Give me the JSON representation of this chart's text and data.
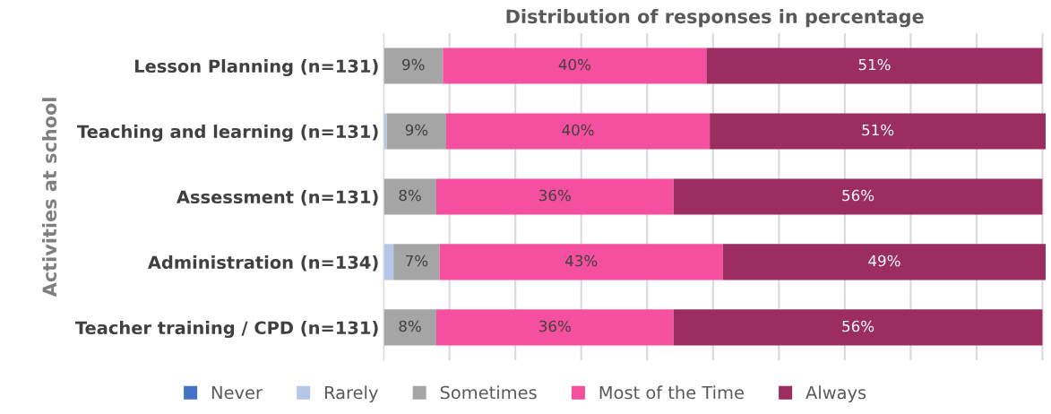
{
  "chart_data": {
    "type": "bar",
    "orientation": "horizontal",
    "stacked": true,
    "title": "Distribution of responses in percentage",
    "ylabel": "Activities at school",
    "categories": [
      "Lesson Planning (n=131)",
      "Teaching and learning (n=131)",
      "Assessment (n=131)",
      "Administration (n=134)",
      "Teacher training / CPD (n=131)"
    ],
    "series": [
      {
        "name": "Never",
        "color": "#4472c4",
        "values": [
          0,
          0,
          0,
          0,
          0
        ]
      },
      {
        "name": "Rarely",
        "color": "#b4c7e7",
        "values": [
          0,
          0.5,
          0,
          1.5,
          0
        ],
        "value_labels": [
          null,
          null,
          null,
          null,
          null
        ]
      },
      {
        "name": "Sometimes",
        "color": "#a5a5a5",
        "values": [
          9,
          9,
          8,
          7,
          8
        ],
        "value_labels": [
          "9%",
          "9%",
          "8%",
          "7%",
          "8%"
        ]
      },
      {
        "name": "Most of the Time",
        "color": "#f54f9f",
        "values": [
          40,
          40,
          36,
          43,
          36
        ],
        "value_labels": [
          "40%",
          "40%",
          "36%",
          "43%",
          "36%"
        ]
      },
      {
        "name": "Always",
        "color": "#9b2d61",
        "values": [
          51,
          51,
          56,
          49,
          56
        ],
        "value_labels": [
          "51%",
          "51%",
          "56%",
          "49%",
          "56%"
        ]
      }
    ],
    "xlim": [
      0,
      100.5
    ],
    "xticks": [
      {
        "value": 0,
        "label": null
      },
      {
        "value": 10,
        "label": null
      },
      {
        "value": 20,
        "label": null
      },
      {
        "value": 30,
        "label": null
      },
      {
        "value": 40,
        "label": null
      },
      {
        "value": 50,
        "label": null
      },
      {
        "value": 60,
        "label": null
      },
      {
        "value": 70,
        "label": null
      },
      {
        "value": 80,
        "label": null
      },
      {
        "value": 90,
        "label": null
      },
      {
        "value": 100,
        "label": null
      }
    ],
    "tick_labels": "y",
    "grid": "x",
    "legend": "bottom"
  }
}
